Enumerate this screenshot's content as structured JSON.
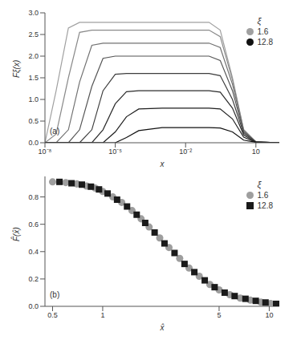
{
  "chart_data": [
    {
      "type": "line",
      "annotation": "(a)",
      "xlabel": "x",
      "ylabel": "Fξ(x)",
      "log": "x",
      "legend": "upper right",
      "legend_title": "ξ",
      "xlim": [
        1e-08,
        100
      ],
      "xticks": [
        {
          "value": 1e-08,
          "label": "10⁻⁸"
        },
        {
          "value": 1e-05,
          "label": "10⁻⁵"
        },
        {
          "value": 0.01,
          "label": "10⁻²"
        },
        10
      ],
      "ylim": [
        0,
        3
      ],
      "yticks": [
        {
          "value": 0,
          "label": "0.0"
        },
        0.5,
        {
          "value": 1,
          "label": "1.0"
        },
        1.5,
        {
          "value": 2,
          "label": "2.0"
        },
        2.5,
        {
          "value": 3,
          "label": "3.0"
        }
      ],
      "x": [
        1e-08,
        3e-08,
        1e-07,
        3e-07,
        1e-06,
        3e-06,
        1e-05,
        3e-05,
        0.0001,
        0.001,
        0.01,
        0.1,
        0.3,
        1,
        3,
        10,
        100
      ],
      "series": [
        {
          "name": "1.6",
          "color": "#a0a0a0",
          "values": [
            0,
            1.2,
            2.65,
            2.78,
            2.78,
            2.78,
            2.78,
            2.78,
            2.78,
            2.78,
            2.78,
            2.78,
            2.6,
            1.5,
            0.3,
            0.02,
            0
          ]
        },
        {
          "color": "#8a8a8a",
          "values": [
            0,
            0.2,
            1.5,
            2.55,
            2.6,
            2.6,
            2.6,
            2.6,
            2.6,
            2.6,
            2.6,
            2.6,
            2.45,
            1.45,
            0.3,
            0.02,
            0
          ]
        },
        {
          "color": "#727272",
          "values": [
            0,
            0,
            0.3,
            1.4,
            2.25,
            2.3,
            2.3,
            2.3,
            2.3,
            2.3,
            2.3,
            2.3,
            2.2,
            1.35,
            0.28,
            0.02,
            0
          ]
        },
        {
          "color": "#555555",
          "values": [
            0,
            0,
            0,
            0.3,
            1.3,
            1.95,
            2,
            2,
            2,
            2,
            2,
            2,
            1.9,
            1.2,
            0.25,
            0.02,
            0
          ]
        },
        {
          "color": "#3e3e3e",
          "values": [
            0,
            0,
            0,
            0,
            0.3,
            1.2,
            1.58,
            1.6,
            1.6,
            1.6,
            1.6,
            1.6,
            1.55,
            1,
            0.22,
            0.02,
            0
          ]
        },
        {
          "color": "#2c2c2c",
          "values": [
            0,
            0,
            0,
            0,
            0,
            0.3,
            0.9,
            1.18,
            1.2,
            1.2,
            1.2,
            1.2,
            1.17,
            0.8,
            0.18,
            0.01,
            0
          ]
        },
        {
          "color": "#1e1e1e",
          "values": [
            0,
            0,
            0,
            0,
            0,
            0,
            0.25,
            0.6,
            0.78,
            0.8,
            0.8,
            0.8,
            0.78,
            0.55,
            0.13,
            0.01,
            0
          ]
        },
        {
          "name": "12.8",
          "color": "#111111",
          "values": [
            0,
            0,
            0,
            0,
            0,
            0,
            0,
            0.12,
            0.28,
            0.35,
            0.35,
            0.35,
            0.34,
            0.25,
            0.06,
            0.01,
            0
          ]
        }
      ]
    },
    {
      "type": "scatter",
      "annotation": "(b)",
      "xlabel": "x̂",
      "ylabel": "F̂(x̂)",
      "log": "x",
      "legend": "upper right",
      "legend_title": "ξ",
      "xlim": [
        0.45,
        11.5
      ],
      "xticks": [
        0.5,
        1,
        5,
        10
      ],
      "ylim": [
        0,
        0.95
      ],
      "yticks": [
        {
          "value": 0,
          "label": "0.0"
        },
        0.2,
        0.4,
        0.6,
        0.8
      ],
      "series": [
        {
          "name": "1.6",
          "color": "#9e9e9e",
          "marker": "circle",
          "x": [
            0.5,
            0.6,
            0.7,
            0.8,
            0.9,
            1.0,
            1.15,
            1.3,
            1.5,
            1.7,
            1.9,
            2.2,
            2.5,
            2.9,
            3.3,
            3.8,
            4.4,
            5.0,
            5.8,
            6.7,
            7.7,
            8.9,
            10.2
          ],
          "values": [
            0.91,
            0.905,
            0.895,
            0.88,
            0.865,
            0.84,
            0.8,
            0.76,
            0.7,
            0.64,
            0.58,
            0.5,
            0.43,
            0.35,
            0.28,
            0.22,
            0.16,
            0.12,
            0.085,
            0.06,
            0.045,
            0.03,
            0.02
          ]
        },
        {
          "name": "12.8",
          "color": "#1a1a1a",
          "marker": "square",
          "x": [
            0.55,
            0.65,
            0.75,
            0.85,
            0.95,
            1.07,
            1.22,
            1.4,
            1.6,
            1.8,
            2.05,
            2.35,
            2.7,
            3.1,
            3.55,
            4.1,
            4.7,
            5.4,
            6.2,
            7.2,
            8.3,
            9.5,
            11
          ],
          "values": [
            0.91,
            0.9,
            0.89,
            0.875,
            0.855,
            0.825,
            0.78,
            0.73,
            0.67,
            0.61,
            0.54,
            0.46,
            0.39,
            0.31,
            0.25,
            0.19,
            0.14,
            0.1,
            0.075,
            0.055,
            0.04,
            0.028,
            0.018
          ]
        }
      ]
    }
  ]
}
